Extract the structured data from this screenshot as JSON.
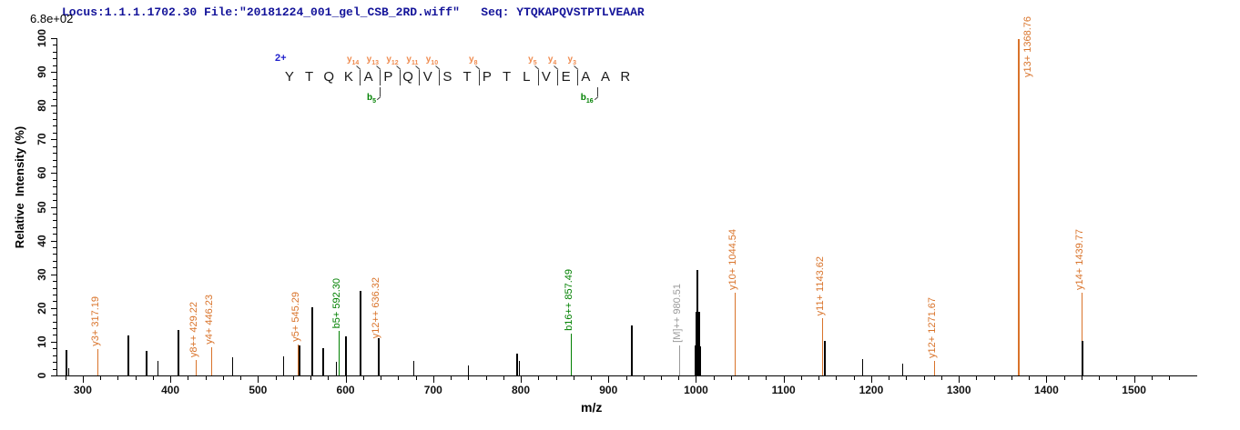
{
  "header": {
    "text": "Locus:1.1.1.1702.30 File:\"20181224_001_gel_CSB_2RD.wiff\"   Seq: YTQKAPQVSTPTLVEAAR"
  },
  "sequence_panel": {
    "charge_label": "2+",
    "residues": [
      "Y",
      "T",
      "Q",
      "K",
      "A",
      "P",
      "Q",
      "V",
      "S",
      "T",
      "P",
      "T",
      "L",
      "V",
      "E",
      "A",
      "A",
      "R"
    ],
    "y_markers": [
      {
        "ion": "y",
        "num": "14",
        "junction": 4
      },
      {
        "ion": "y",
        "num": "13",
        "junction": 5
      },
      {
        "ion": "y",
        "num": "12",
        "junction": 6
      },
      {
        "ion": "y",
        "num": "11",
        "junction": 7
      },
      {
        "ion": "y",
        "num": "10",
        "junction": 8
      },
      {
        "ion": "y",
        "num": "8",
        "junction": 10
      },
      {
        "ion": "y",
        "num": "5",
        "junction": 13
      },
      {
        "ion": "y",
        "num": "4",
        "junction": 14
      },
      {
        "ion": "y",
        "num": "3",
        "junction": 15
      }
    ],
    "b_markers": [
      {
        "ion": "b",
        "num": "5",
        "junction": 5
      },
      {
        "ion": "b",
        "num": "16",
        "junction": 16
      }
    ]
  },
  "chart_data": {
    "type": "bar",
    "subtype": "centroided-ms2-peptide-spectrum",
    "title": "",
    "xlabel": "m/z",
    "ylabel": "Relative  Intensity (%)",
    "y_scale_max_label": "6.8e+02",
    "xlim": [
      270,
      1570
    ],
    "ylim": [
      0,
      100
    ],
    "x_major_ticks": [
      300,
      400,
      500,
      600,
      700,
      800,
      900,
      1000,
      1100,
      1200,
      1300,
      1400,
      1500
    ],
    "x_minor_ticks": {
      "start": 280,
      "end": 1540,
      "step": 20
    },
    "y_major_tick_step": 10,
    "y_minor_tick_step": 2,
    "grid": false,
    "peaks": [
      {
        "mz": 281.5,
        "intensity": 7.5,
        "type": "unassigned",
        "width": 2
      },
      {
        "mz": 283.6,
        "intensity": 2.2,
        "type": "unassigned"
      },
      {
        "mz": 317.19,
        "intensity": 7.8,
        "type": "y",
        "label": "y3+ 317.19"
      },
      {
        "mz": 352.5,
        "intensity": 11.8,
        "type": "unassigned",
        "width": 2
      },
      {
        "mz": 373.2,
        "intensity": 7.2,
        "type": "unassigned",
        "width": 2
      },
      {
        "mz": 385.0,
        "intensity": 4.2,
        "type": "unassigned"
      },
      {
        "mz": 409.0,
        "intensity": 13.5,
        "type": "unassigned",
        "width": 2
      },
      {
        "mz": 429.22,
        "intensity": 4.6,
        "type": "y",
        "label": "y8++ 429.22"
      },
      {
        "mz": 446.23,
        "intensity": 8.4,
        "type": "y",
        "label": "y4+ 446.23"
      },
      {
        "mz": 471.0,
        "intensity": 5.5,
        "type": "unassigned"
      },
      {
        "mz": 529.2,
        "intensity": 5.7,
        "type": "unassigned"
      },
      {
        "mz": 545.29,
        "intensity": 9.2,
        "type": "y",
        "label": "y5+ 545.29"
      },
      {
        "mz": 547.0,
        "intensity": 9.0,
        "type": "unassigned",
        "width": 2
      },
      {
        "mz": 562.5,
        "intensity": 20.2,
        "type": "unassigned",
        "width": 2
      },
      {
        "mz": 574.5,
        "intensity": 8.0,
        "type": "unassigned",
        "width": 2
      },
      {
        "mz": 589.0,
        "intensity": 4.0,
        "type": "unassigned"
      },
      {
        "mz": 592.3,
        "intensity": 13.2,
        "type": "b",
        "label": "b5+ 592.30"
      },
      {
        "mz": 600.0,
        "intensity": 11.6,
        "type": "unassigned",
        "width": 2
      },
      {
        "mz": 617.4,
        "intensity": 25.2,
        "type": "unassigned",
        "width": 2
      },
      {
        "mz": 636.32,
        "intensity": 10.2,
        "type": "y",
        "label": "y12++ 636.32"
      },
      {
        "mz": 637.8,
        "intensity": 11.0,
        "type": "unassigned",
        "width": 2
      },
      {
        "mz": 677.0,
        "intensity": 4.4,
        "type": "unassigned"
      },
      {
        "mz": 739.6,
        "intensity": 3.0,
        "type": "unassigned"
      },
      {
        "mz": 796.0,
        "intensity": 6.4,
        "type": "unassigned",
        "width": 2
      },
      {
        "mz": 798.3,
        "intensity": 4.3,
        "type": "unassigned"
      },
      {
        "mz": 856.7,
        "intensity": 12.0,
        "type": "y"
      },
      {
        "mz": 857.49,
        "intensity": 12.5,
        "type": "b",
        "label": "b16++ 857.49"
      },
      {
        "mz": 926.5,
        "intensity": 14.8,
        "type": "unassigned",
        "width": 2
      },
      {
        "mz": 980.51,
        "intensity": 8.9,
        "type": "precursor",
        "label": "[M]++ 980.51"
      },
      {
        "mz": 999.3,
        "intensity": 9.0,
        "type": "unassigned",
        "width": 2
      },
      {
        "mz": 1000.6,
        "intensity": 19.0,
        "type": "unassigned",
        "width": 2
      },
      {
        "mz": 1001.9,
        "intensity": 31.2,
        "type": "unassigned",
        "width": 2
      },
      {
        "mz": 1003.2,
        "intensity": 19.0,
        "type": "unassigned",
        "width": 2
      },
      {
        "mz": 1004.6,
        "intensity": 8.5,
        "type": "unassigned",
        "width": 2
      },
      {
        "mz": 1044.54,
        "intensity": 24.6,
        "type": "y",
        "label": "y10+ 1044.54"
      },
      {
        "mz": 1143.62,
        "intensity": 17.0,
        "type": "y",
        "label": "y11+ 1143.62"
      },
      {
        "mz": 1146.8,
        "intensity": 10.2,
        "type": "unassigned",
        "width": 2
      },
      {
        "mz": 1190.0,
        "intensity": 4.9,
        "type": "unassigned"
      },
      {
        "mz": 1235.7,
        "intensity": 3.5,
        "type": "unassigned"
      },
      {
        "mz": 1271.67,
        "intensity": 4.4,
        "type": "y",
        "label": "y12+ 1271.67"
      },
      {
        "mz": 1368.76,
        "intensity": 99.6,
        "type": "y",
        "label": "y13+ 1368.76",
        "width": 2,
        "label_anchor": "right_of_top"
      },
      {
        "mz": 1439.77,
        "intensity": 24.6,
        "type": "y",
        "label": "y14+ 1439.77"
      },
      {
        "mz": 1441.3,
        "intensity": 10.2,
        "type": "unassigned",
        "width": 2
      }
    ]
  },
  "colors": {
    "background": "#ffffff",
    "axis": "#000000",
    "peak_unassigned": "#000000",
    "peak_y_ion": "#d9732a",
    "peak_b_ion": "#008000",
    "peak_precursor": "#9a9a9a",
    "header_text": "#14149a",
    "charge_text": "#2020cc",
    "seq_letter": "#1a1a1a",
    "seq_y_label": "#ef8b4f",
    "seq_b_label": "#008000",
    "marker_line": "#3a3a3a"
  }
}
